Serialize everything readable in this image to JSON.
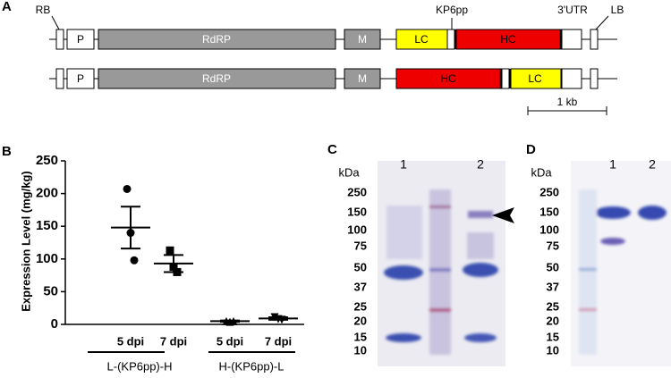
{
  "panel_a": {
    "label": "A",
    "row1": {
      "rb": "RB",
      "p": "P",
      "rdrp": "RdRP",
      "m": "M",
      "lc": "LC",
      "kp6pp": "KP6pp",
      "hc": "HC",
      "utr": "3'UTR",
      "lb": "LB"
    },
    "row2": {
      "p": "P",
      "rdrp": "RdRP",
      "m": "M",
      "hc": "HC",
      "lc": "LC"
    },
    "scale": "1 kb"
  },
  "chart_data": {
    "type": "dot",
    "label": "B",
    "ylabel": "Expression Level (mg/kg)",
    "categories": [
      "5 dpi",
      "7 dpi",
      "5 dpi",
      "7 dpi"
    ],
    "groups": [
      "L-(KP6pp)-H",
      "H-(KP6pp)-L"
    ],
    "values": [
      [
        207,
        140,
        98
      ],
      [
        113,
        88,
        80
      ],
      [
        5,
        4,
        5
      ],
      [
        11,
        8,
        7
      ]
    ],
    "means": [
      148,
      93,
      5,
      9
    ],
    "errors": [
      32,
      13,
      1,
      2
    ],
    "markers": [
      "circle",
      "square",
      "triangle-up",
      "triangle-down"
    ],
    "color": "#000000",
    "ylim": [
      0,
      250
    ],
    "yticks": [
      0,
      50,
      100,
      150,
      200,
      250
    ]
  },
  "panel_c": {
    "label": "C",
    "unit": "kDa",
    "lanes": [
      "1",
      "2"
    ],
    "ladder": [
      250,
      150,
      100,
      75,
      50,
      37,
      25,
      20,
      15,
      10
    ]
  },
  "panel_d": {
    "label": "D",
    "unit": "kDa",
    "lanes": [
      "1",
      "2"
    ],
    "ladder": [
      250,
      150,
      100,
      75,
      50,
      37,
      25,
      20,
      15,
      10
    ]
  }
}
